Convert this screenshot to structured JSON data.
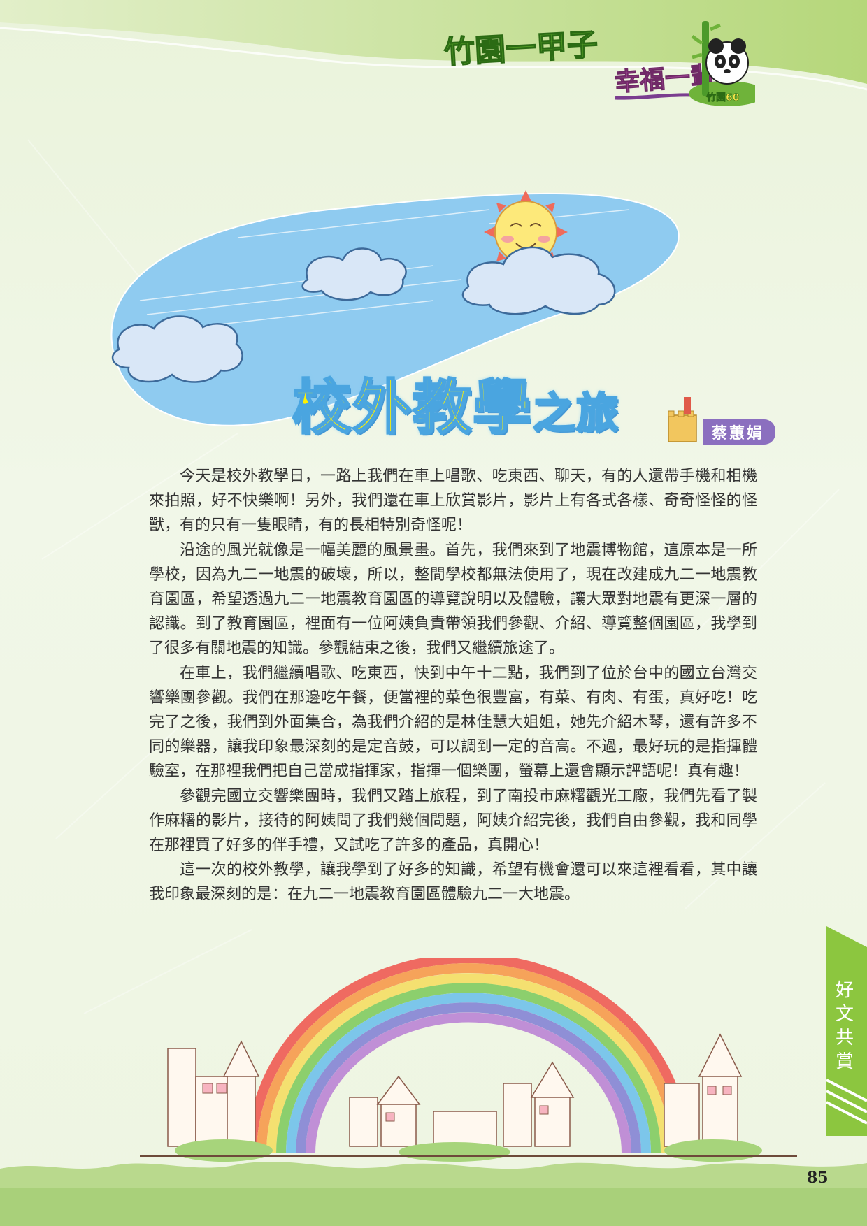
{
  "header": {
    "logo_part1": "竹園一甲子",
    "logo_part2": "幸福一輩子",
    "badge_text": "竹園60"
  },
  "article": {
    "title_main": "校外教學",
    "title_suffix": "之旅",
    "author": "蔡蕙娟",
    "paragraphs": [
      "今天是校外教學日，一路上我們在車上唱歌、吃東西、聊天，有的人還帶手機和相機來拍照，好不快樂啊！另外，我們還在車上欣賞影片，影片上有各式各樣、奇奇怪怪的怪獸，有的只有一隻眼睛，有的長相特別奇怪呢！",
      "沿途的風光就像是一幅美麗的風景畫。首先，我們來到了地震博物館，這原本是一所學校，因為九二一地震的破壞，所以，整間學校都無法使用了，現在改建成九二一地震教育園區，希望透過九二一地震教育園區的導覽說明以及體驗，讓大眾對地震有更深一層的認識。到了教育園區，裡面有一位阿姨負責帶領我們參觀、介紹、導覽整個園區，我學到了很多有關地震的知識。參觀結束之後，我們又繼續旅途了。",
      "在車上，我們繼續唱歌、吃東西，快到中午十二點，我們到了位於台中的國立台灣交響樂團參觀。我們在那邊吃午餐，便當裡的菜色很豐富，有菜、有肉、有蛋，真好吃！吃完了之後，我們到外面集合，為我們介紹的是林佳慧大姐姐，她先介紹木琴，還有許多不同的樂器，讓我印象最深刻的是定音鼓，可以調到一定的音高。不過，最好玩的是指揮體驗室，在那裡我們把自己當成指揮家，指揮一個樂團，螢幕上還會顯示評語呢！真有趣！",
      "參觀完國立交響樂團時，我們又踏上旅程，到了南投市麻糬觀光工廠，我們先看了製作麻糬的影片，接待的阿姨問了我們幾個問題，阿姨介紹完後，我們自由參觀，我和同學在那裡買了好多的伴手禮，又試吃了許多的產品，真開心！",
      "這一次的校外教學，讓我學到了好多的知識，希望有機會還可以來這裡看看，其中讓我印象最深刻的是：在九二一地震教育園區體驗九二一大地震。"
    ]
  },
  "side_tab": {
    "label": "好文共賞"
  },
  "page_number": "85",
  "colors": {
    "accent_green": "#8cc63f",
    "sky_blue": "#8fcbf0",
    "title_yellow": "#fff200",
    "author_purple": "#8b6fbf"
  },
  "icons": [
    "panda-icon",
    "bamboo-icon",
    "sun-icon",
    "cloud-icon",
    "pencil-castle-icon",
    "rainbow-icon"
  ]
}
